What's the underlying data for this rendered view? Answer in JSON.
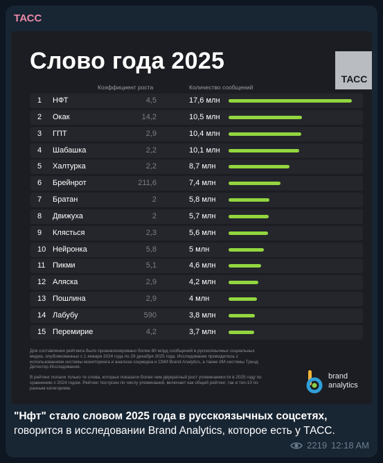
{
  "channel": {
    "name": "ТАСС"
  },
  "infographic": {
    "title": "Слово года 2025",
    "logo_text": "ТАСС",
    "column_headers": {
      "growth": "Коэффициент роста",
      "messages": "Количество сообщений"
    },
    "accent_color": "#93d63f",
    "rows": [
      {
        "rank": "1",
        "word": "НФТ",
        "growth": "4,5",
        "messages": "17,6 млн",
        "value_mln": 17.6
      },
      {
        "rank": "2",
        "word": "Окак",
        "growth": "14,2",
        "messages": "10,5 млн",
        "value_mln": 10.5
      },
      {
        "rank": "3",
        "word": "ГПТ",
        "growth": "2,9",
        "messages": "10,4 млн",
        "value_mln": 10.4
      },
      {
        "rank": "4",
        "word": "Шабашка",
        "growth": "2,2",
        "messages": "10,1 млн",
        "value_mln": 10.1
      },
      {
        "rank": "5",
        "word": "Халтурка",
        "growth": "2,2",
        "messages": "8,7 млн",
        "value_mln": 8.7
      },
      {
        "rank": "6",
        "word": "Брейнрот",
        "growth": "211,6",
        "messages": "7,4 млн",
        "value_mln": 7.4
      },
      {
        "rank": "7",
        "word": "Братан",
        "growth": "2",
        "messages": "5,8 млн",
        "value_mln": 5.8
      },
      {
        "rank": "8",
        "word": "Движуха",
        "growth": "2",
        "messages": "5,7 млн",
        "value_mln": 5.7
      },
      {
        "rank": "9",
        "word": "Клясться",
        "growth": "2,3",
        "messages": "5,6 млн",
        "value_mln": 5.6
      },
      {
        "rank": "10",
        "word": "Нейронка",
        "growth": "5,8",
        "messages": "5 млн",
        "value_mln": 5
      },
      {
        "rank": "11",
        "word": "Пикми",
        "growth": "5,1",
        "messages": "4,6 млн",
        "value_mln": 4.6
      },
      {
        "rank": "12",
        "word": "Аляска",
        "growth": "2,9",
        "messages": "4,2 млн",
        "value_mln": 4.2
      },
      {
        "rank": "13",
        "word": "Пошлина",
        "growth": "2,9",
        "messages": "4 млн",
        "value_mln": 4
      },
      {
        "rank": "14",
        "word": "Лабубу",
        "growth": "590",
        "messages": "3,8 млн",
        "value_mln": 3.8
      },
      {
        "rank": "15",
        "word": "Перемирие",
        "growth": "4,2",
        "messages": "3,7 млн",
        "value_mln": 3.7
      }
    ],
    "footnote_1": "Для составления рейтинга было проанализировано более 80 млрд сообщений в русскоязычных социальных медиа, опубликованных с 1 января 2024 года по 29 декабря 2025 года. Исследование проводилось с использованием системы мониторинга и анализа соцмедиа и СМИ Brand Analytics, а также ИИ-системы Тренд Детектор Исследования.",
    "footnote_2": "В рейтинг попали только те слова, которые показали более чем двукратный рост упоминаемости в 2025 году по сравнению с 2024 годом. Рейтинг построен по числу упоминаний, включает как общий рейтинг, так и топ-10 по разным категориям.",
    "brand": {
      "line1": "brand",
      "line2": "analytics"
    }
  },
  "caption": {
    "bold": "\"Нфт\" стало словом 2025 года в русскоязычных соцсетях,",
    "text": " говорится в исследовании Brand Analytics, которое есть у ТАСС."
  },
  "meta": {
    "views": "2219",
    "time": "12:18 AM"
  }
}
